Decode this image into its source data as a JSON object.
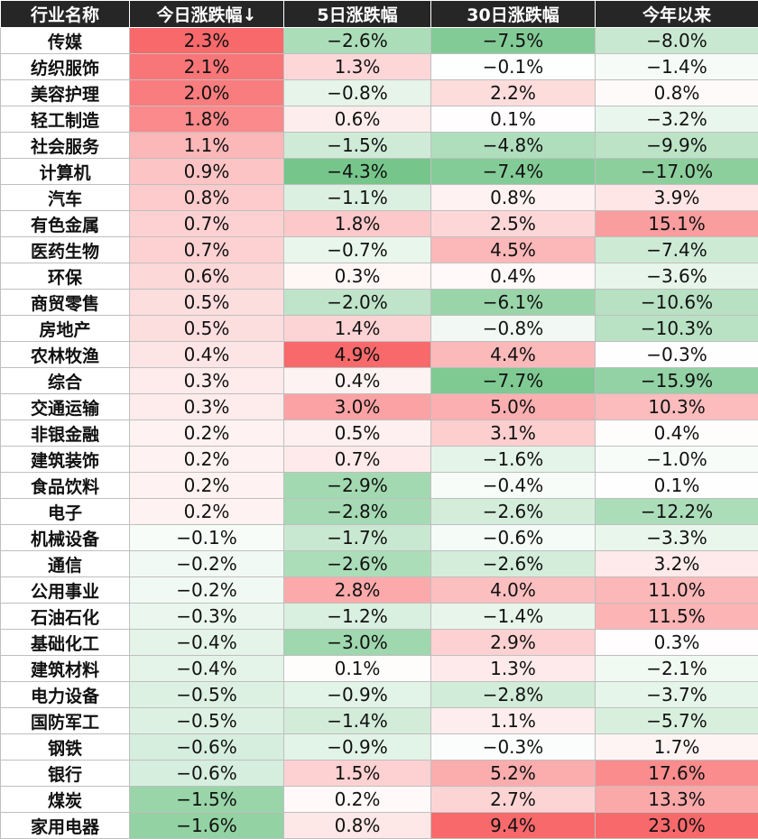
{
  "chart_data": {
    "type": "table",
    "columns": [
      "行业名称",
      "今日涨跌幅↓",
      "5日涨跌幅",
      "30日涨跌幅",
      "今年以来"
    ],
    "rows": [
      [
        "传媒",
        "2.3%",
        "−2.6%",
        "−7.5%",
        "−8.0%"
      ],
      [
        "纺织服饰",
        "2.1%",
        "1.3%",
        "−0.1%",
        "−1.4%"
      ],
      [
        "美容护理",
        "2.0%",
        "−0.8%",
        "2.2%",
        "0.8%"
      ],
      [
        "轻工制造",
        "1.8%",
        "0.6%",
        "0.1%",
        "−3.2%"
      ],
      [
        "社会服务",
        "1.1%",
        "−1.5%",
        "−4.8%",
        "−9.9%"
      ],
      [
        "计算机",
        "0.9%",
        "−4.3%",
        "−7.4%",
        "−17.0%"
      ],
      [
        "汽车",
        "0.8%",
        "−1.1%",
        "0.8%",
        "3.9%"
      ],
      [
        "有色金属",
        "0.7%",
        "1.8%",
        "2.5%",
        "15.1%"
      ],
      [
        "医药生物",
        "0.7%",
        "−0.7%",
        "4.5%",
        "−7.4%"
      ],
      [
        "环保",
        "0.6%",
        "0.3%",
        "0.4%",
        "−3.6%"
      ],
      [
        "商贸零售",
        "0.5%",
        "−2.0%",
        "−6.1%",
        "−10.6%"
      ],
      [
        "房地产",
        "0.5%",
        "1.4%",
        "−0.8%",
        "−10.3%"
      ],
      [
        "农林牧渔",
        "0.4%",
        "4.9%",
        "4.4%",
        "−0.3%"
      ],
      [
        "综合",
        "0.3%",
        "0.4%",
        "−7.7%",
        "−15.9%"
      ],
      [
        "交通运输",
        "0.3%",
        "3.0%",
        "5.0%",
        "10.3%"
      ],
      [
        "非银金融",
        "0.2%",
        "0.5%",
        "3.1%",
        "0.4%"
      ],
      [
        "建筑装饰",
        "0.2%",
        "0.7%",
        "−1.6%",
        "−1.0%"
      ],
      [
        "食品饮料",
        "0.2%",
        "−2.9%",
        "−0.4%",
        "0.1%"
      ],
      [
        "电子",
        "0.2%",
        "−2.8%",
        "−2.6%",
        "−12.2%"
      ],
      [
        "机械设备",
        "−0.1%",
        "−1.7%",
        "−0.6%",
        "−3.3%"
      ],
      [
        "通信",
        "−0.2%",
        "−2.6%",
        "−2.6%",
        "3.2%"
      ],
      [
        "公用事业",
        "−0.2%",
        "2.8%",
        "4.0%",
        "11.0%"
      ],
      [
        "石油石化",
        "−0.3%",
        "−1.2%",
        "−1.4%",
        "11.5%"
      ],
      [
        "基础化工",
        "−0.4%",
        "−3.0%",
        "2.9%",
        "0.3%"
      ],
      [
        "建筑材料",
        "−0.4%",
        "0.1%",
        "1.3%",
        "−2.1%"
      ],
      [
        "电力设备",
        "−0.5%",
        "−0.9%",
        "−2.8%",
        "−3.7%"
      ],
      [
        "国防军工",
        "−0.5%",
        "−1.4%",
        "1.1%",
        "−5.7%"
      ],
      [
        "钢铁",
        "−0.6%",
        "−0.9%",
        "−0.3%",
        "1.7%"
      ],
      [
        "银行",
        "−0.6%",
        "1.5%",
        "5.2%",
        "17.6%"
      ],
      [
        "煤炭",
        "−1.5%",
        "0.2%",
        "2.7%",
        "13.3%"
      ],
      [
        "家用电器",
        "−1.6%",
        "0.8%",
        "9.4%",
        "23.0%"
      ]
    ]
  },
  "colors": {
    "header_bg": "#262626",
    "header_text": "#ffffff",
    "positive": "#f8696b",
    "negative": "#63be7b",
    "neutral": "#ffffff"
  }
}
